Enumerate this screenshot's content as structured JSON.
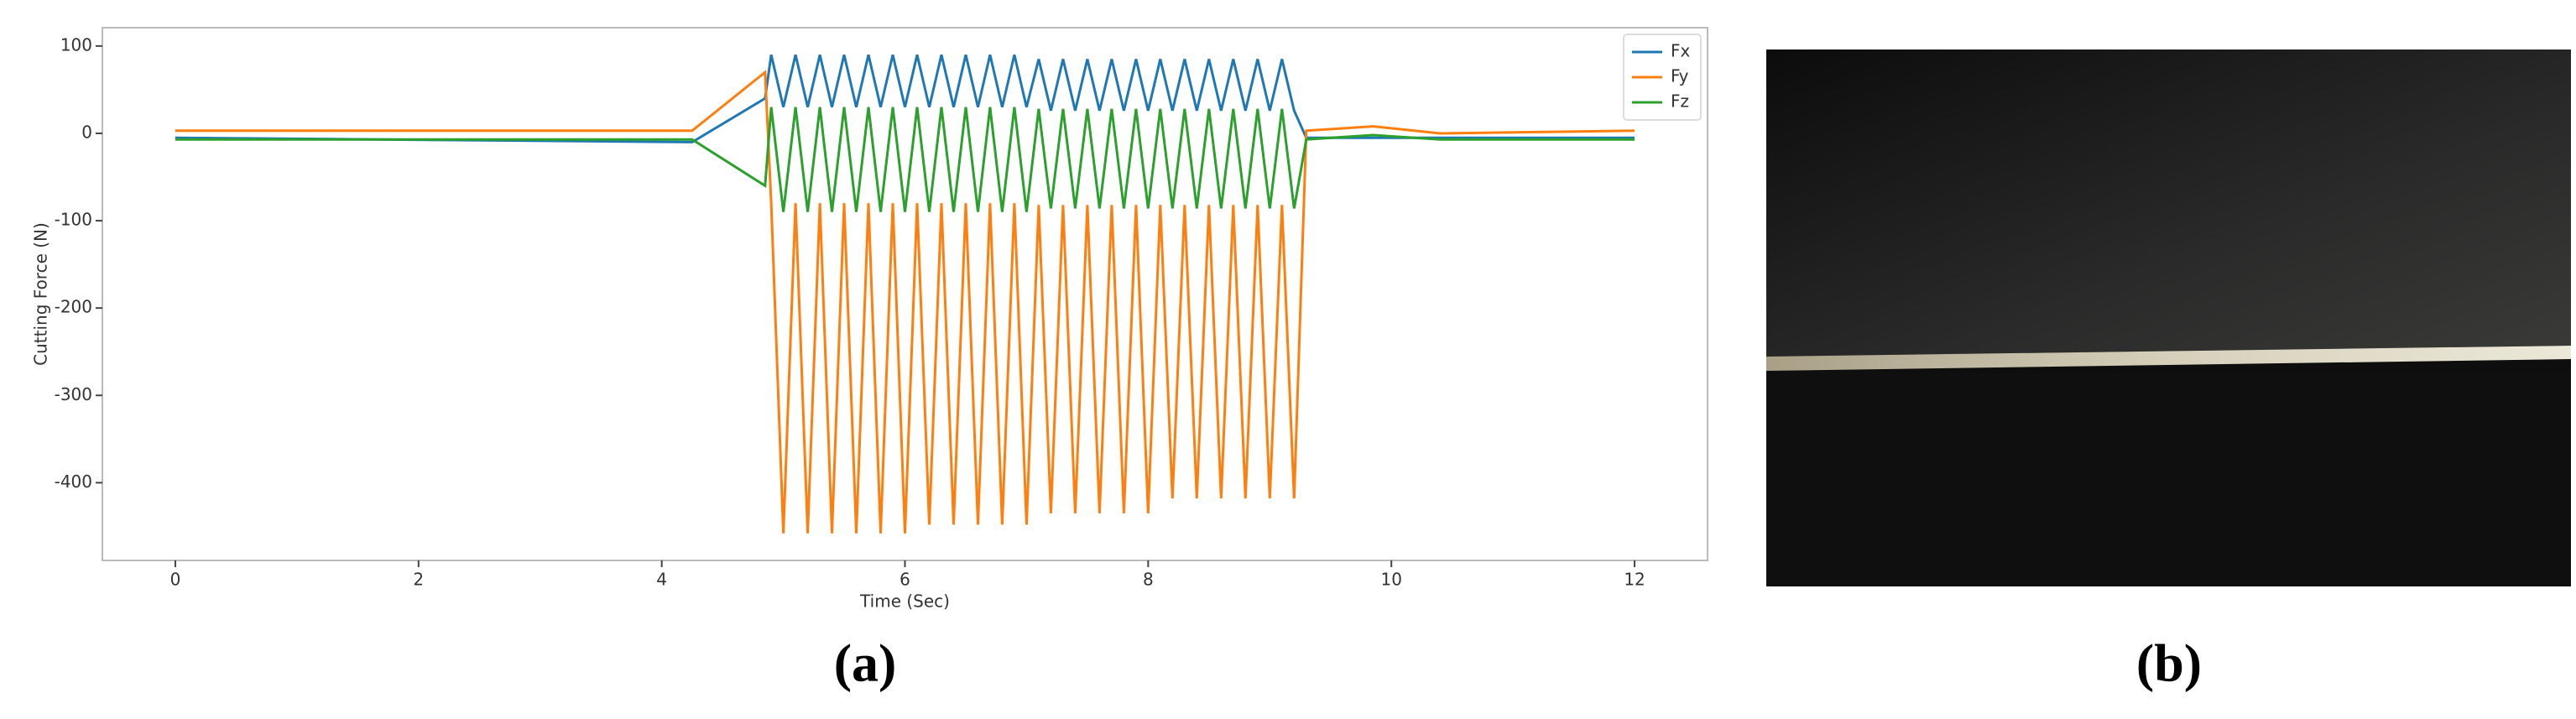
{
  "chart_data": {
    "type": "line",
    "xlabel": "Time (Sec)",
    "ylabel": "Cutting Force (N)",
    "x": [
      0,
      4.25,
      4.85,
      4.9,
      5,
      5.1,
      5.2,
      5.3,
      5.4,
      5.5,
      5.6,
      5.7,
      5.8,
      5.9,
      6,
      6.1,
      6.2,
      6.3,
      6.4,
      6.5,
      6.6,
      6.7,
      6.8,
      6.9,
      7,
      7.1,
      7.2,
      7.3,
      7.4,
      7.5,
      7.6,
      7.7,
      7.8,
      7.9,
      8,
      8.1,
      8.2,
      8.3,
      8.4,
      8.5,
      8.6,
      8.7,
      8.8,
      8.9,
      9,
      9.1,
      9.2,
      9.3,
      9.85,
      10.4,
      12
    ],
    "series": [
      {
        "name": "Fx",
        "color": "#1f77b4",
        "values": [
          -5,
          -10,
          40,
          90,
          30,
          90,
          30,
          90,
          30,
          90,
          30,
          90,
          30,
          90,
          30,
          90,
          30,
          90,
          30,
          90,
          30,
          90,
          30,
          90,
          30,
          85,
          26,
          85,
          26,
          85,
          26,
          85,
          26,
          85,
          26,
          85,
          26,
          85,
          26,
          85,
          26,
          85,
          26,
          85,
          26,
          85,
          26,
          -5,
          -5,
          -5,
          -5
        ]
      },
      {
        "name": "Fy",
        "color": "#ff7f0e",
        "values": [
          3,
          3,
          70,
          -80,
          -458,
          -80,
          -458,
          -80,
          -458,
          -80,
          -458,
          -80,
          -458,
          -80,
          -458,
          -80,
          -448,
          -80,
          -448,
          -80,
          -448,
          -80,
          -448,
          -80,
          -448,
          -82,
          -435,
          -82,
          -435,
          -82,
          -435,
          -82,
          -435,
          -82,
          -435,
          -82,
          -418,
          -82,
          -418,
          -82,
          -418,
          -82,
          -418,
          -82,
          -418,
          -82,
          -418,
          3,
          8,
          0,
          3
        ]
      },
      {
        "name": "Fz",
        "color": "#2ca02c",
        "values": [
          -7,
          -7,
          -60,
          30,
          -90,
          30,
          -90,
          30,
          -90,
          30,
          -90,
          30,
          -90,
          30,
          -90,
          30,
          -90,
          30,
          -90,
          30,
          -90,
          30,
          -90,
          30,
          -90,
          28,
          -86,
          28,
          -86,
          28,
          -86,
          28,
          -86,
          28,
          -86,
          28,
          -86,
          28,
          -86,
          28,
          -86,
          28,
          -86,
          28,
          -86,
          28,
          -86,
          -7,
          -2,
          -7,
          -7
        ]
      }
    ],
    "xlim": [
      -0.6,
      12.6
    ],
    "xticks": [
      0,
      2,
      4,
      6,
      8,
      10,
      12
    ],
    "ylim": [
      -489,
      121
    ],
    "yticks": [
      -400,
      -300,
      -200,
      -100,
      0,
      100
    ],
    "legend": "upper right"
  },
  "captions": [
    "(a)",
    "(b)"
  ]
}
